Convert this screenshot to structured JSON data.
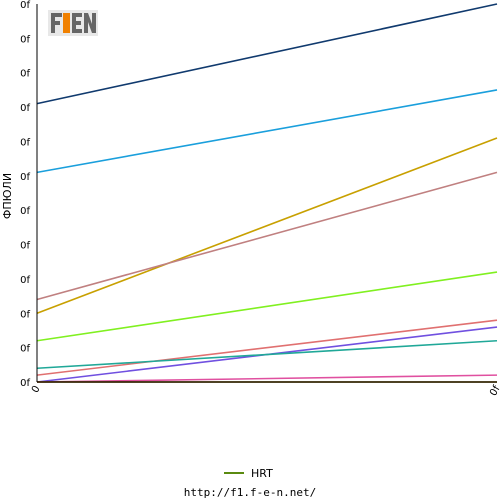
{
  "logo": {
    "text": "F1EN",
    "primary": "#666666",
    "accent": "#f08000"
  },
  "footer": {
    "url": "http://f1.f-e-n.net/"
  },
  "chart_data": {
    "type": "line",
    "ylabel": "ФПЮЛИ",
    "x": [
      0,
      1
    ],
    "x_tick_labels": [
      "0",
      "0f"
    ],
    "y_tick_labels": [
      "0f",
      "0f",
      "0f",
      "0f",
      "0f",
      "0f",
      "0f",
      "0f",
      "0f",
      "0f",
      "0f",
      "0f"
    ],
    "ylim": [
      0,
      11
    ],
    "grid": false,
    "legend_position": "bottom",
    "series": [
      {
        "color": "#103a6e",
        "values": [
          8.1,
          11.0
        ]
      },
      {
        "color": "#1a9fdc",
        "values": [
          6.1,
          8.5
        ]
      },
      {
        "color": "#c8a000",
        "values": [
          2.0,
          7.1
        ]
      },
      {
        "color": "#c08080",
        "values": [
          2.4,
          6.1
        ]
      },
      {
        "color": "#80f020",
        "values": [
          1.2,
          3.2
        ]
      },
      {
        "color": "#e07070",
        "values": [
          0.2,
          1.8
        ]
      },
      {
        "color": "#7050e0",
        "values": [
          0.0,
          1.6
        ]
      },
      {
        "color": "#20a898",
        "values": [
          0.4,
          1.2
        ]
      },
      {
        "color": "#e050a0",
        "values": [
          0.0,
          0.2
        ]
      },
      {
        "color": "#c00000",
        "values": [
          0.0,
          0.0
        ]
      },
      {
        "name": "HRT",
        "color": "#5a8a10",
        "values": [
          0.0,
          0.0
        ]
      }
    ]
  }
}
